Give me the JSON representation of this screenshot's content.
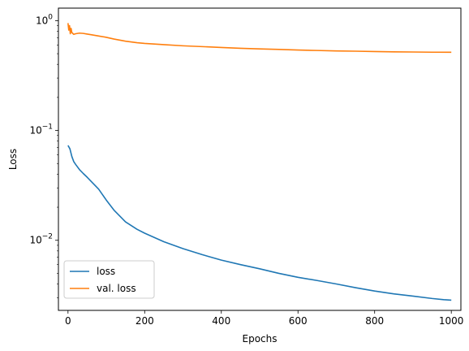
{
  "chart_data": {
    "type": "line",
    "title": "",
    "xlabel": "Epochs",
    "ylabel": "Loss",
    "xlim": [
      -25,
      1025
    ],
    "ylim": [
      0.0023,
      1.3
    ],
    "yscale": "log",
    "grid": false,
    "legend_position": "lower-left",
    "x_ticks": [
      0,
      200,
      400,
      600,
      800,
      1000
    ],
    "x_tick_labels": [
      "0",
      "200",
      "400",
      "600",
      "800",
      "1000"
    ],
    "y_ticks": [
      1,
      0.1,
      0.01
    ],
    "y_tick_labels": [
      {
        "base": "10",
        "exp": "0"
      },
      {
        "base": "10",
        "exp": "−1"
      },
      {
        "base": "10",
        "exp": "−2"
      }
    ],
    "series": [
      {
        "name": "loss",
        "color": "#1f77b4",
        "x": [
          0,
          5,
          10,
          15,
          20,
          30,
          40,
          50,
          60,
          80,
          100,
          120,
          150,
          180,
          200,
          250,
          300,
          350,
          400,
          450,
          500,
          550,
          600,
          650,
          700,
          750,
          800,
          850,
          900,
          950,
          980,
          1000
        ],
        "y": [
          0.073,
          0.068,
          0.058,
          0.052,
          0.049,
          0.044,
          0.0405,
          0.0375,
          0.0345,
          0.0292,
          0.0232,
          0.0188,
          0.0147,
          0.0126,
          0.0116,
          0.0097,
          0.0084,
          0.0074,
          0.0066,
          0.006,
          0.0055,
          0.005,
          0.0046,
          0.0043,
          0.004,
          0.0037,
          0.00345,
          0.00325,
          0.0031,
          0.00295,
          0.00288,
          0.00285
        ]
      },
      {
        "name": "val. loss",
        "color": "#ff7f0e",
        "x": [
          0,
          2,
          4,
          6,
          8,
          10,
          15,
          20,
          30,
          40,
          50,
          60,
          80,
          100,
          120,
          150,
          180,
          200,
          250,
          300,
          350,
          400,
          450,
          500,
          550,
          600,
          650,
          700,
          750,
          800,
          850,
          900,
          950,
          1000
        ],
        "y": [
          0.95,
          0.82,
          0.9,
          0.76,
          0.85,
          0.78,
          0.75,
          0.76,
          0.77,
          0.765,
          0.755,
          0.745,
          0.725,
          0.705,
          0.68,
          0.65,
          0.63,
          0.62,
          0.605,
          0.59,
          0.58,
          0.57,
          0.56,
          0.553,
          0.547,
          0.54,
          0.535,
          0.53,
          0.527,
          0.523,
          0.52,
          0.518,
          0.516,
          0.515
        ]
      }
    ]
  }
}
